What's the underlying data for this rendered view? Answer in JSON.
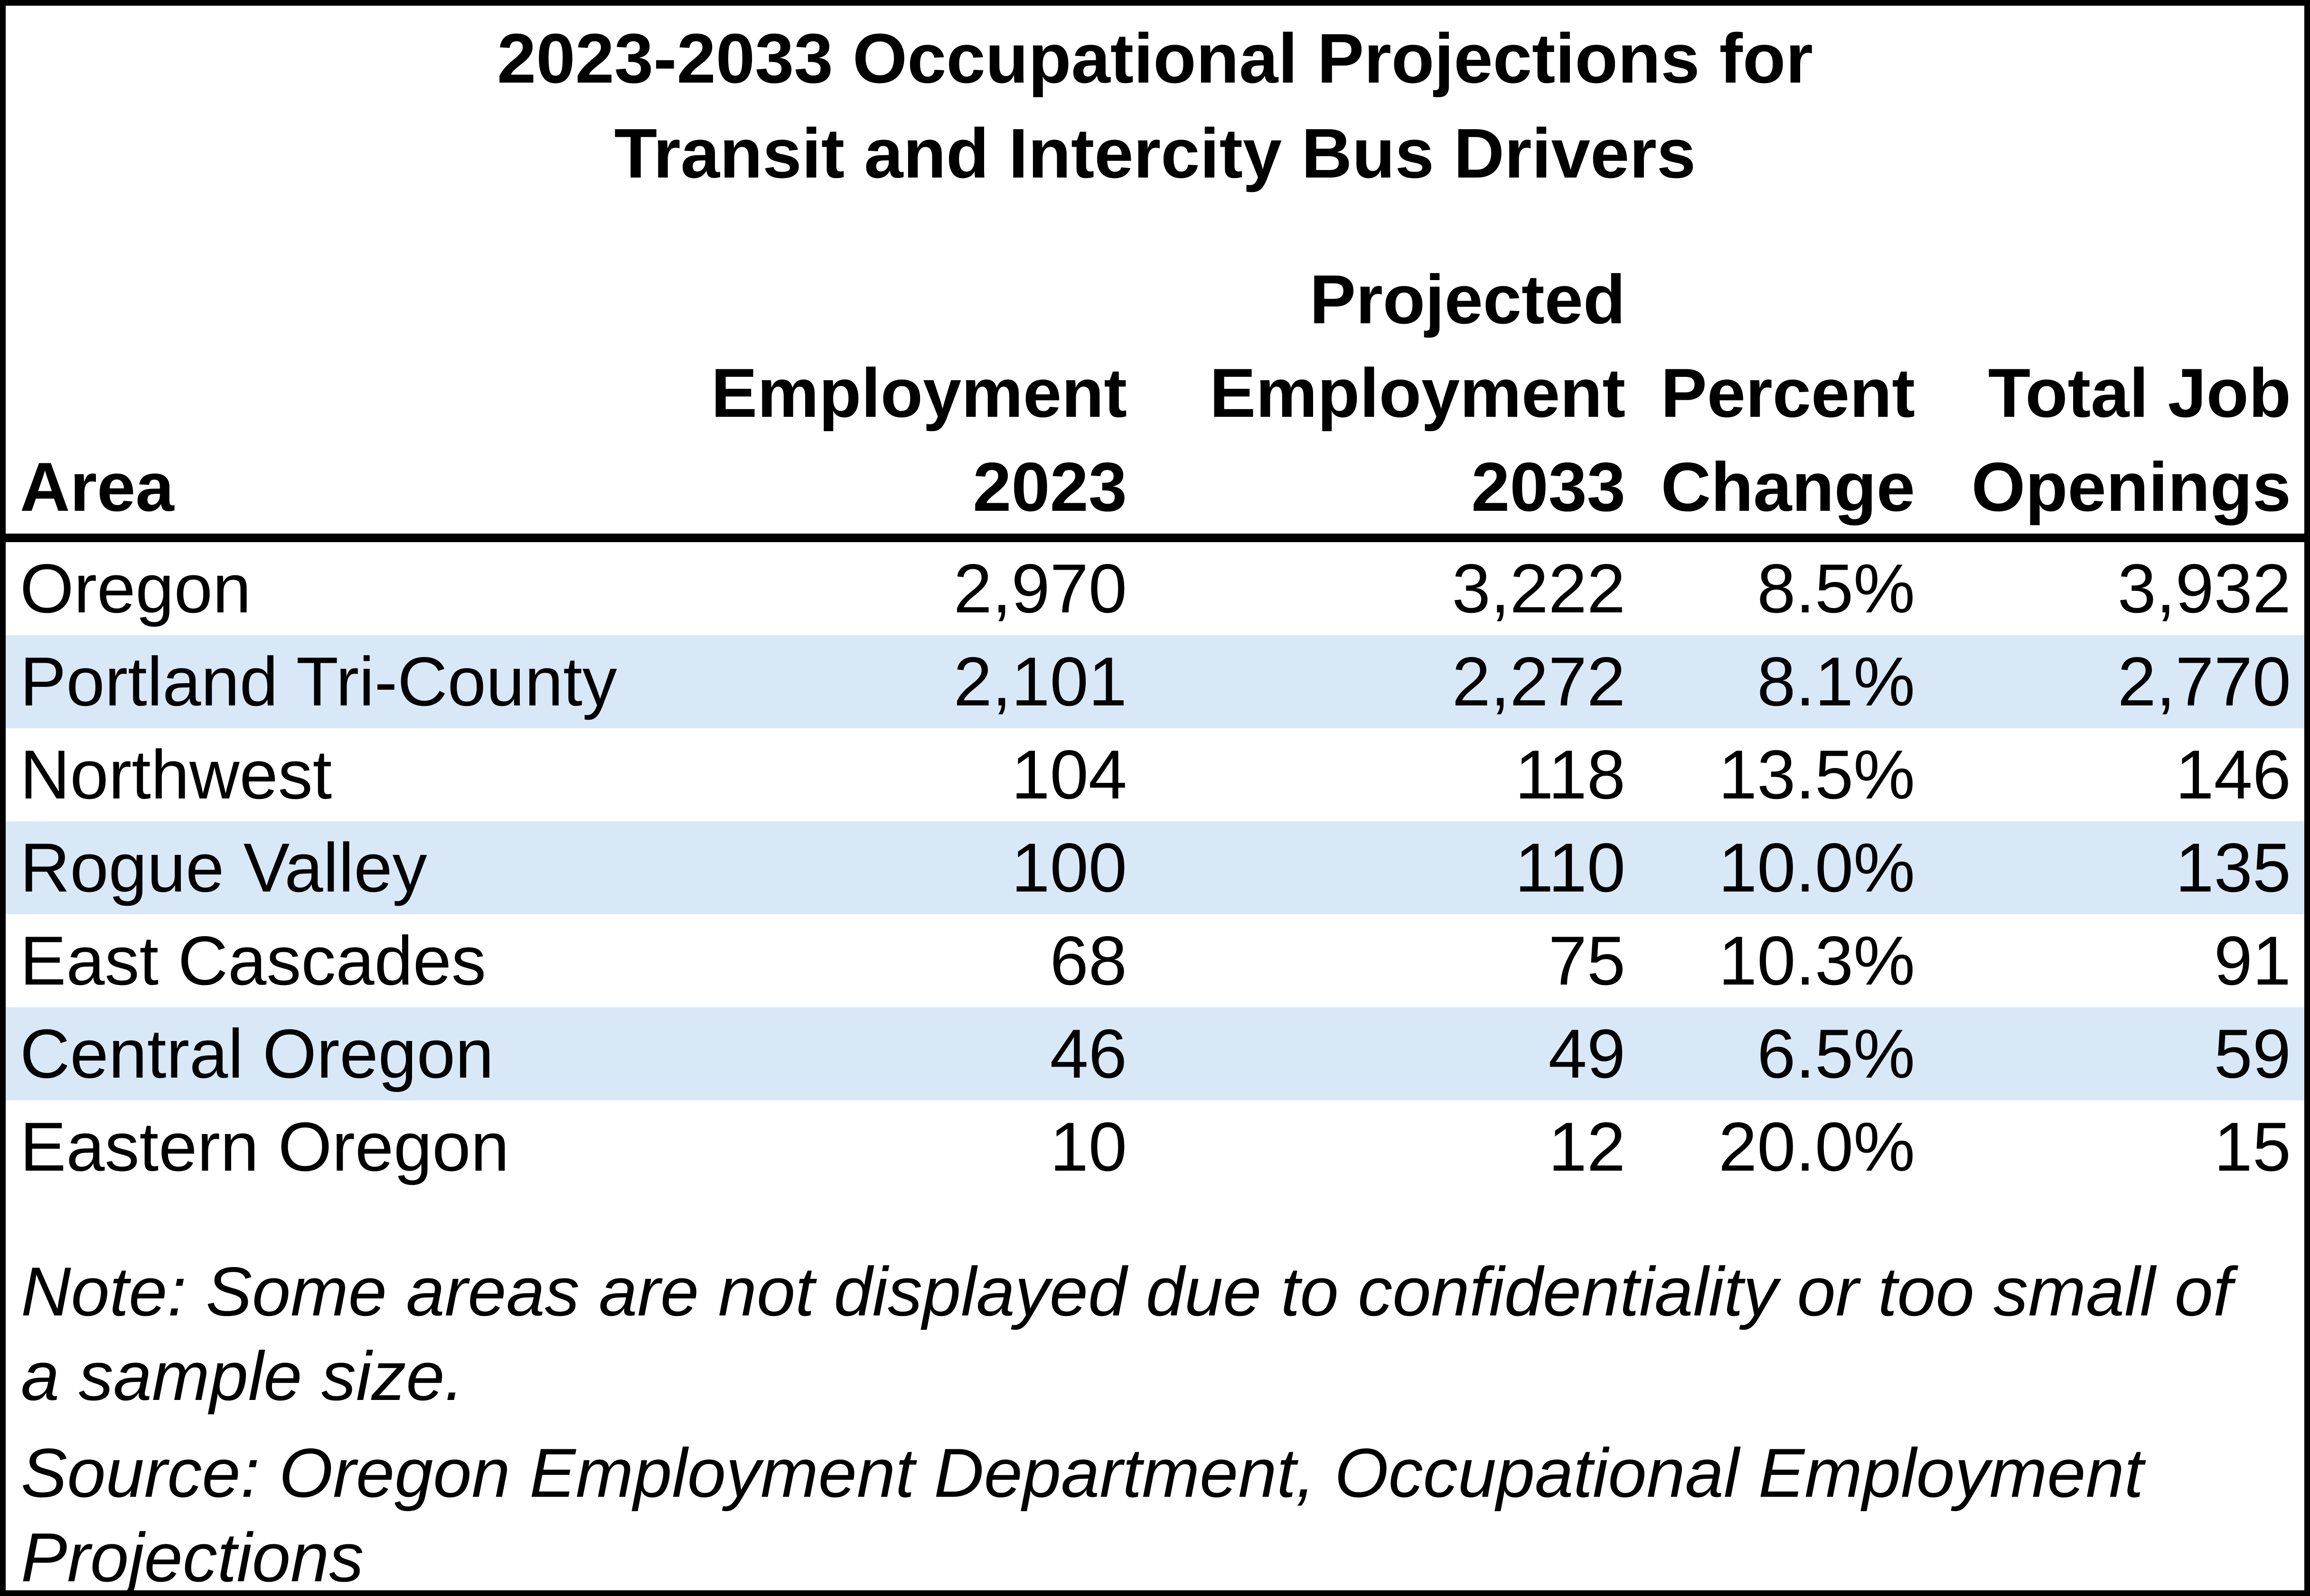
{
  "title": {
    "line1": "2023-2033 Occupational Projections for",
    "line2": "Transit and Intercity Bus Drivers"
  },
  "table": {
    "headers": {
      "area": "Area",
      "employment_2023": "Employment\n2023",
      "projected_employment_2033": "Projected\nEmployment\n2033",
      "percent_change": "Percent\nChange",
      "total_job_openings": "Total Job\nOpenings"
    },
    "rows": [
      {
        "area": "Oregon",
        "employment_2023": "2,970",
        "projected_employment_2033": "3,222",
        "percent_change": "8.5%",
        "total_job_openings": "3,932"
      },
      {
        "area": "Portland Tri-County",
        "employment_2023": "2,101",
        "projected_employment_2033": "2,272",
        "percent_change": "8.1%",
        "total_job_openings": "2,770"
      },
      {
        "area": "Northwest",
        "employment_2023": "104",
        "projected_employment_2033": "118",
        "percent_change": "13.5%",
        "total_job_openings": "146"
      },
      {
        "area": "Rogue Valley",
        "employment_2023": "100",
        "projected_employment_2033": "110",
        "percent_change": "10.0%",
        "total_job_openings": "135"
      },
      {
        "area": "East Cascades",
        "employment_2023": "68",
        "projected_employment_2033": "75",
        "percent_change": "10.3%",
        "total_job_openings": "91"
      },
      {
        "area": "Central Oregon",
        "employment_2023": "46",
        "projected_employment_2033": "49",
        "percent_change": "6.5%",
        "total_job_openings": "59"
      },
      {
        "area": "Eastern Oregon",
        "employment_2023": "10",
        "projected_employment_2033": "12",
        "percent_change": "20.0%",
        "total_job_openings": "15"
      }
    ]
  },
  "notes": {
    "note": "Note: Some areas are not displayed due to confidentiality or too small of a sample size.",
    "source": "Source: Oregon Employment Department, Occupational Employment Projections"
  },
  "colors": {
    "row_highlight": "#D9E8F7",
    "border": "#000000",
    "text": "#000000",
    "background": "#FFFFFF"
  },
  "chart_data": {
    "type": "table",
    "title": "2023-2033 Occupational Projections for Transit and Intercity Bus Drivers",
    "columns": [
      "Area",
      "Employment 2023",
      "Projected Employment 2033",
      "Percent Change",
      "Total Job Openings"
    ],
    "rows": [
      [
        "Oregon",
        2970,
        3222,
        "8.5%",
        3932
      ],
      [
        "Portland Tri-County",
        2101,
        2272,
        "8.1%",
        2770
      ],
      [
        "Northwest",
        104,
        118,
        "13.5%",
        146
      ],
      [
        "Rogue Valley",
        100,
        110,
        "10.0%",
        135
      ],
      [
        "East Cascades",
        68,
        75,
        "10.3%",
        91
      ],
      [
        "Central Oregon",
        46,
        49,
        "6.5%",
        59
      ],
      [
        "Eastern Oregon",
        10,
        12,
        "20.0%",
        15
      ]
    ],
    "highlighted_rows": [
      "Portland Tri-County",
      "Rogue Valley",
      "Central Oregon"
    ],
    "note": "Note: Some areas are not displayed due to confidentiality or too small of a sample size.",
    "source": "Source: Oregon Employment Department, Occupational Employment Projections"
  }
}
